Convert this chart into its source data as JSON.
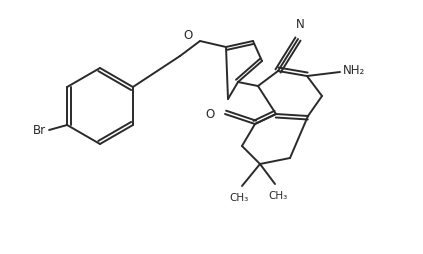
{
  "background_color": "#ffffff",
  "line_color": "#2a2a2a",
  "line_width": 1.4,
  "font_size": 8.5,
  "figsize": [
    4.23,
    2.54
  ],
  "dpi": 100,
  "xlim": [
    0,
    423
  ],
  "ylim": [
    0,
    254
  ]
}
